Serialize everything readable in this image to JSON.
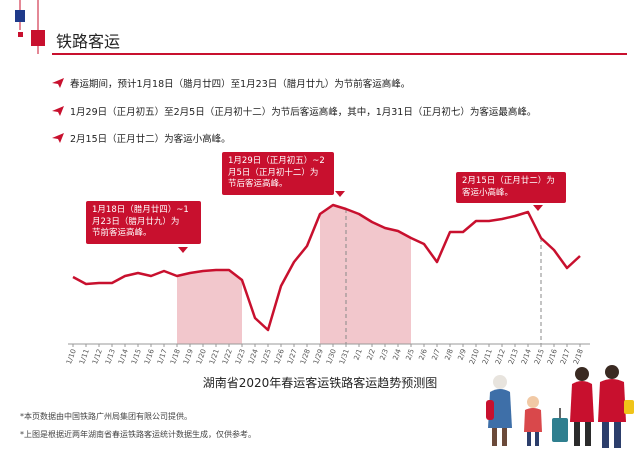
{
  "header": {
    "title": "铁路客运"
  },
  "bullets": [
    "春运期间，预计1月18日（腊月廿四）至1月23日（腊月廿九）为节前客运高峰。",
    "1月29日（正月初五）至2月5日（正月初十二）为节后客运高峰，其中，1月31日（正月初七）为客运最高峰。",
    "2月15日（正月廿二）为客运小高峰。"
  ],
  "callouts": [
    {
      "lines": [
        "1月18日（腊月廿四）~1",
        "月23日（腊月廿九）为",
        "节前客运高峰。"
      ]
    },
    {
      "lines": [
        "1月29日（正月初五）~2",
        "月5日（正月初十二）为",
        "节后客运高峰。"
      ]
    },
    {
      "lines": [
        "2月15日（正月廿二）为",
        "客运小高峰。"
      ]
    }
  ],
  "notes": [
    "*本页数据由中国铁路广州局集团有限公司提供。",
    "*上图是根据近两年湖南省春运铁路客运统计数据生成，仅供参考。"
  ],
  "colors": {
    "accent": "#c8102e",
    "shade": "#f2c7cc",
    "axis": "#999999"
  },
  "chart_data": {
    "type": "line",
    "title": "湖南省2020年春运客运铁路客运趋势预测图",
    "categories": [
      "1/10",
      "1/11",
      "1/12",
      "1/13",
      "1/14",
      "1/15",
      "1/16",
      "1/17",
      "1/18",
      "1/19",
      "1/20",
      "1/21",
      "1/22",
      "1/23",
      "1/24",
      "1/25",
      "1/26",
      "1/27",
      "1/28",
      "1/29",
      "1/30",
      "1/31",
      "2/1",
      "2/2",
      "2/3",
      "2/4",
      "2/5",
      "2/6",
      "2/7",
      "2/8",
      "2/9",
      "2/10",
      "2/11",
      "2/12",
      "2/13",
      "2/14",
      "2/15",
      "2/16",
      "2/17",
      "2/18"
    ],
    "series": [
      {
        "values": [
          277,
          284,
          283,
          283,
          276,
          273,
          276,
          271,
          276,
          273,
          271,
          270,
          270,
          280,
          318,
          330,
          286,
          262,
          246,
          214,
          205,
          209,
          214,
          222,
          228,
          231,
          238,
          244,
          262,
          232,
          232,
          221,
          221,
          219,
          216,
          212,
          238,
          250,
          268,
          256
        ]
      }
    ],
    "value_scale": "inverted pixel-like index, higher number = lower passenger volume (no y-axis printed)",
    "highlight_ranges": [
      [
        "1/18",
        "1/23"
      ],
      [
        "1/29",
        "2/5"
      ]
    ],
    "markers": [
      "1/31",
      "2/15"
    ],
    "grid": false,
    "legend": "none"
  }
}
